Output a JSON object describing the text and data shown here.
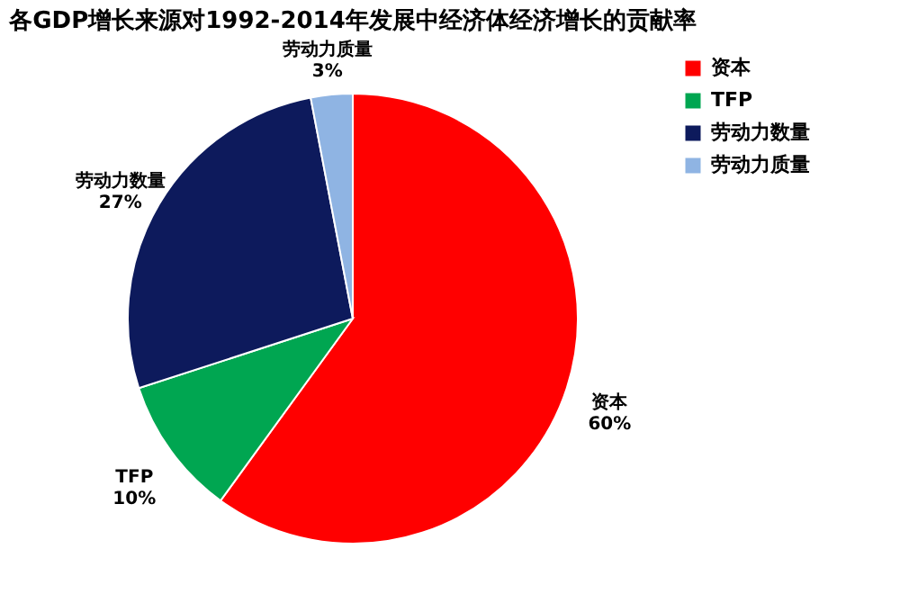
{
  "chart_data": {
    "type": "pie",
    "title": "各GDP增长来源对1992-2014年发展中经济体经济增长的贡献率",
    "categories": [
      "资本",
      "TFP",
      "劳动力数量",
      "劳动力质量"
    ],
    "values": [
      60,
      10,
      27,
      3
    ],
    "colors": [
      "#ff0000",
      "#00a651",
      "#0d1a5c",
      "#8fb4e3"
    ],
    "value_labels": [
      "60%",
      "10%",
      "27%",
      "3%"
    ],
    "legend": "right"
  }
}
